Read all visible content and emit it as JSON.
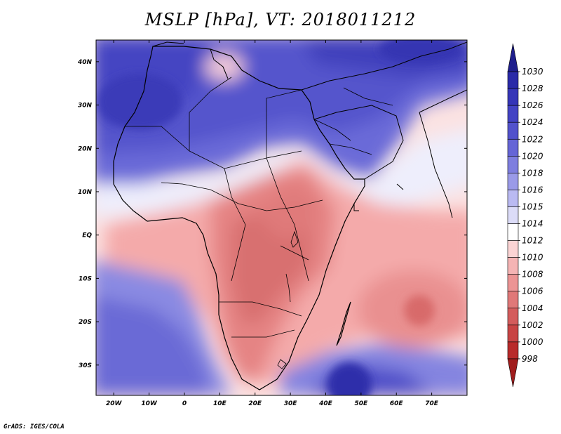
{
  "title": "MSLP [hPa], VT: 2018011212",
  "credit": "GrADS: IGES/COLA",
  "chart_data": {
    "type": "heatmap",
    "title": "MSLP [hPa], VT: 2018011212",
    "variable": "MSLP",
    "units": "hPa",
    "valid_time": "2018011212",
    "lon_range": [
      -25,
      80
    ],
    "lat_range": [
      -37,
      45
    ],
    "x_ticks": [
      "20W",
      "10W",
      "0",
      "10E",
      "20E",
      "30E",
      "40E",
      "50E",
      "60E",
      "70E"
    ],
    "x_tick_values": [
      -20,
      -10,
      0,
      10,
      20,
      30,
      40,
      50,
      60,
      70
    ],
    "y_ticks": [
      "40N",
      "30N",
      "20N",
      "10N",
      "EQ",
      "10S",
      "20S",
      "30S"
    ],
    "y_tick_values": [
      40,
      30,
      20,
      10,
      0,
      -10,
      -20,
      -30
    ],
    "colorbar": {
      "labels": [
        "1030",
        "1028",
        "1026",
        "1024",
        "1022",
        "1020",
        "1018",
        "1016",
        "1015",
        "1014",
        "1012",
        "1010",
        "1008",
        "1006",
        "1004",
        "1002",
        "1000",
        "998"
      ],
      "colors": [
        "#1e1e8c",
        "#2a2aa8",
        "#3535b8",
        "#4343c4",
        "#5252cc",
        "#6565d6",
        "#7e7edf",
        "#9a9ae8",
        "#babaf2",
        "#dcdcf8",
        "#ffffff",
        "#fbd4d4",
        "#f5b4b4",
        "#ec9494",
        "#e07878",
        "#d45c5c",
        "#c84444",
        "#b82a2a",
        "#a01c1c"
      ]
    },
    "features": {
      "low_center": {
        "lon": 67,
        "lat": -17,
        "value": 1004
      },
      "high_center": {
        "lon": 48,
        "lat": -35,
        "value": 1026
      },
      "equatorial_trough": 1008,
      "sahara_high": 1024
    }
  }
}
